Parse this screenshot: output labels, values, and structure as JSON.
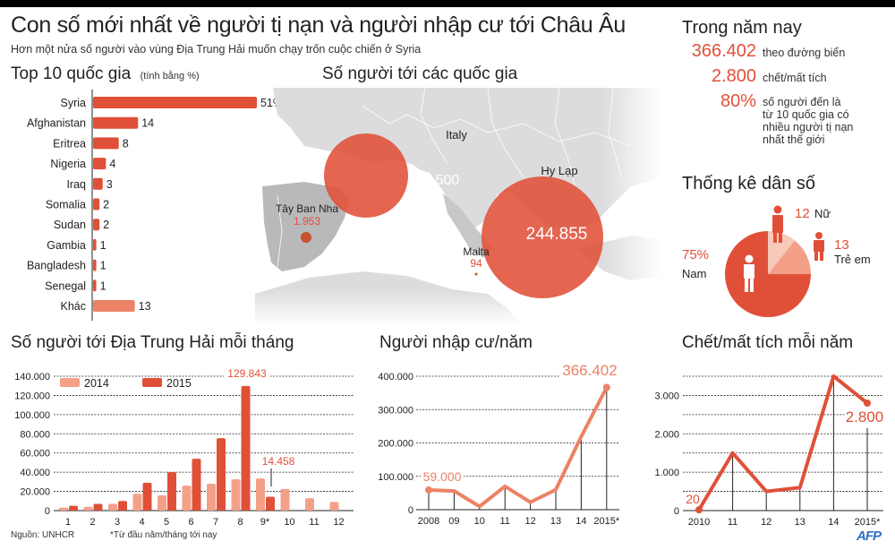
{
  "header": {
    "title": "Con số mới nhất về người tị nạn và người nhập cư tới Châu Âu",
    "subtitle": "Hơn một nửa số người vào vùng Địa Trung Hải muốn chạy trốn cuộc chiến ở Syria"
  },
  "top10": {
    "title": "Top 10 quốc gia",
    "unit_note": "(tính bằng %)"
  },
  "map": {
    "title": "Số người tới các quốc gia",
    "countries": [
      {
        "name": "Italy",
        "value": "119.500"
      },
      {
        "name": "Hy Lạp",
        "value": "244.855"
      },
      {
        "name": "Tây Ban Nha",
        "value": "1.953"
      },
      {
        "name": "Malta",
        "value": "94"
      }
    ]
  },
  "this_year": {
    "title": "Trong năm nay",
    "stats": [
      {
        "value": "366.402",
        "label": "theo đường biển"
      },
      {
        "value": "2.800",
        "label": "chết/mất tích"
      },
      {
        "value": "80%",
        "label_lines": [
          "số người đến là",
          "từ 10 quốc gia có",
          "nhiều người tị nạn",
          "nhất thế giới"
        ]
      }
    ]
  },
  "demographics": {
    "title": "Thống kê dân số",
    "male_value": "75%",
    "male_label": "Nam",
    "female_value": "12",
    "female_label": "Nữ",
    "children_value": "13",
    "children_label": "Trẻ em"
  },
  "monthly": {
    "title": "Số người tới Địa Trung Hải mỗi tháng",
    "legend_2014": "2014",
    "legend_2015": "2015",
    "peak_label": "129.843",
    "sep_label": "14.458"
  },
  "yearly": {
    "title": "Người nhập cư/năm",
    "first_label": "59.000",
    "last_label": "366.402"
  },
  "deaths": {
    "title": "Chết/mất tích mỗi năm",
    "first_label": "20",
    "last_label": "2.800"
  },
  "footer": {
    "source": "Nguồn: UNHCR",
    "note": "*Từ đầu năm/tháng tới nay",
    "logo": "AFP"
  },
  "colors": {
    "accent": "#e05038",
    "accent_light": "#f4a088",
    "accent_pale": "#f7c9b8",
    "line_orange": "#ec8266",
    "map_land": "#d9d9db",
    "map_spain": "#b9b9bc"
  },
  "chart_data": [
    {
      "type": "bar",
      "title": "Top 10 quốc gia (tính bằng %)",
      "orientation": "horizontal",
      "categories": [
        "Syria",
        "Afghanistan",
        "Eritrea",
        "Nigeria",
        "Iraq",
        "Somalia",
        "Sudan",
        "Gambia",
        "Bangladesh",
        "Senegal",
        "Khác"
      ],
      "values": [
        51,
        14,
        8,
        4,
        3,
        2,
        2,
        1,
        1,
        1,
        13
      ],
      "value_labels": [
        "51%",
        "14",
        "8",
        "4",
        "3",
        "2",
        "2",
        "1",
        "1",
        "1",
        "13"
      ],
      "unit": "%"
    },
    {
      "type": "bar",
      "title": "Số người tới Địa Trung Hải mỗi tháng",
      "categories": [
        "1",
        "2",
        "3",
        "4",
        "5",
        "6",
        "7",
        "8",
        "9*",
        "10",
        "11",
        "12"
      ],
      "series": [
        {
          "name": "2014",
          "values": [
            3000,
            4000,
            7000,
            17500,
            16000,
            26000,
            28000,
            32500,
            33500,
            22500,
            13000,
            9000
          ]
        },
        {
          "name": "2015",
          "values": [
            5000,
            7000,
            10000,
            29000,
            40000,
            54000,
            75500,
            129843,
            14458,
            null,
            null,
            null
          ]
        }
      ],
      "yticks": [
        "0",
        "20.000",
        "40.000",
        "60.000",
        "80.000",
        "100.000",
        "120.000",
        "140.000"
      ],
      "ylim": [
        0,
        140000
      ],
      "annotations": [
        "129.843",
        "14.458"
      ],
      "legend_position": "top-left",
      "grid": true
    },
    {
      "type": "line",
      "title": "Người nhập cư/năm",
      "x": [
        "2008",
        "09",
        "10",
        "11",
        "12",
        "13",
        "14",
        "2015*"
      ],
      "values": [
        59000,
        56000,
        9700,
        70000,
        22500,
        60000,
        219000,
        366402
      ],
      "yticks": [
        "0",
        "100.000",
        "200.000",
        "300.000",
        "400.000"
      ],
      "ylim": [
        0,
        400000
      ],
      "annotations": [
        "59.000",
        "366.402"
      ],
      "grid": true
    },
    {
      "type": "line",
      "title": "Chết/mất tích mỗi năm",
      "x": [
        "2010",
        "11",
        "12",
        "13",
        "14",
        "2015*"
      ],
      "values": [
        20,
        1500,
        500,
        600,
        3500,
        2800
      ],
      "yticks": [
        "0",
        "1.000",
        "2.000",
        "3.000"
      ],
      "ylim": [
        0,
        3500
      ],
      "annotations": [
        "20",
        "2.800"
      ],
      "grid": true
    },
    {
      "type": "pie",
      "title": "Thống kê dân số",
      "categories": [
        "Nam",
        "Nữ",
        "Trẻ em"
      ],
      "values": [
        75,
        12,
        13
      ],
      "unit": "%"
    },
    {
      "type": "bubble-map",
      "title": "Số người tới các quốc gia",
      "categories": [
        "Hy Lạp",
        "Italy",
        "Tây Ban Nha",
        "Malta"
      ],
      "values": [
        244855,
        119500,
        1953,
        94
      ]
    }
  ]
}
